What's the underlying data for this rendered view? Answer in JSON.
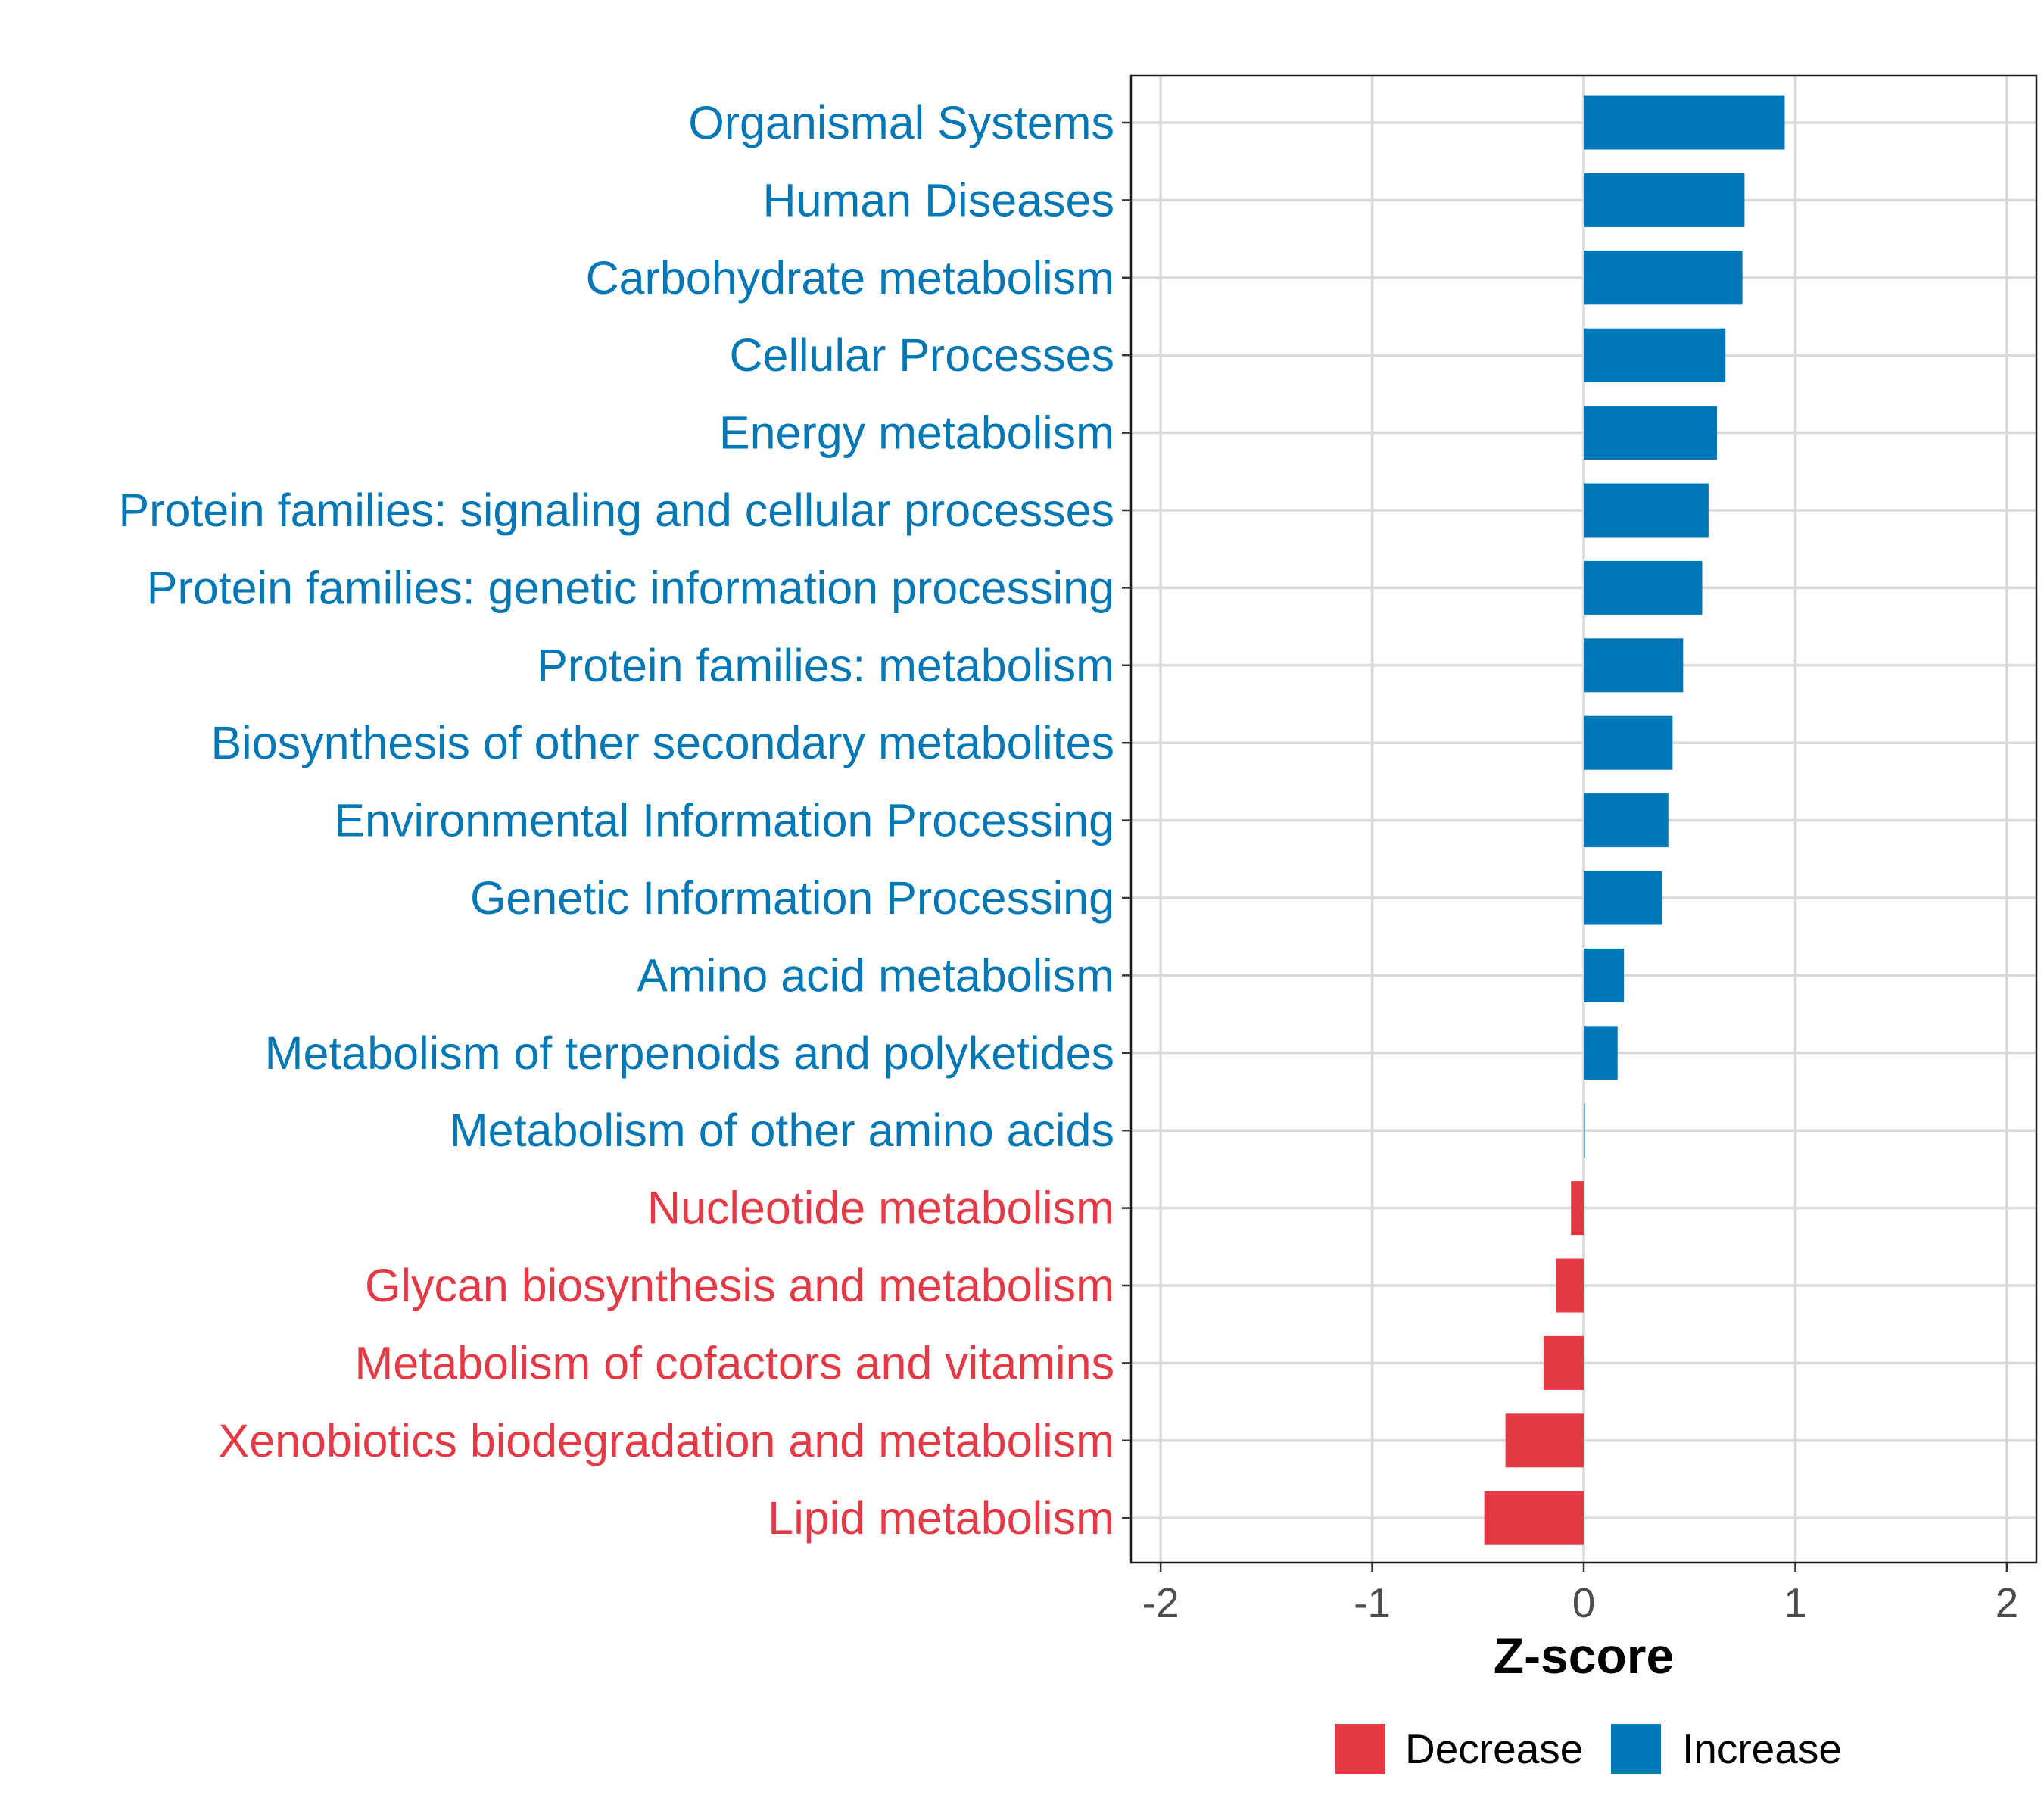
{
  "chart_data": {
    "type": "bar",
    "orientation": "horizontal",
    "categories": [
      "Organismal Systems",
      "Human Diseases",
      "Carbohydrate metabolism",
      "Cellular Processes",
      "Energy metabolism",
      "Protein families: signaling and cellular processes",
      "Protein families: genetic information processing",
      "Protein families: metabolism",
      "Biosynthesis of other secondary metabolites",
      "Environmental Information Processing",
      "Genetic Information Processing",
      "Amino acid metabolism",
      "Metabolism of terpenoids and polyketides",
      "Metabolism of other amino acids",
      "Nucleotide metabolism",
      "Glycan biosynthesis and metabolism",
      "Metabolism of cofactors and vitamins",
      "Xenobiotics biodegradation and metabolism",
      "Lipid metabolism"
    ],
    "values": [
      0.95,
      0.76,
      0.75,
      0.67,
      0.63,
      0.59,
      0.56,
      0.47,
      0.42,
      0.4,
      0.37,
      0.19,
      0.16,
      0.003,
      -0.06,
      -0.13,
      -0.19,
      -0.37,
      -0.47
    ],
    "groups": [
      "Increase",
      "Increase",
      "Increase",
      "Increase",
      "Increase",
      "Increase",
      "Increase",
      "Increase",
      "Increase",
      "Increase",
      "Increase",
      "Increase",
      "Increase",
      "Increase",
      "Decrease",
      "Decrease",
      "Decrease",
      "Decrease",
      "Decrease"
    ],
    "title": "",
    "xlabel": "Z-score",
    "ylabel": "",
    "xlim": [
      -2.14,
      2.14
    ],
    "xticks": [
      -2,
      -1,
      0,
      1,
      2
    ],
    "xtick_labels": [
      "-2",
      "-1",
      "0",
      "1",
      "2"
    ],
    "grid": true,
    "legend": {
      "position": "bottom",
      "items": [
        {
          "label": "Decrease",
          "color": "#E63946"
        },
        {
          "label": "Increase",
          "color": "#0077B6"
        }
      ]
    },
    "colors": {
      "Decrease": "#E63946",
      "Increase": "#0077B6"
    }
  }
}
